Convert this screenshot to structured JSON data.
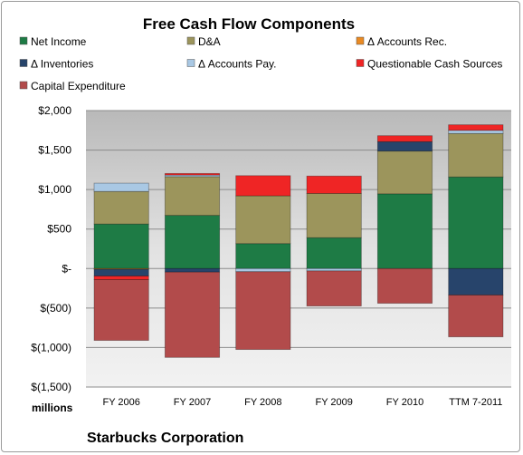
{
  "chart_data": {
    "type": "bar",
    "stacked": true,
    "title": "Free Cash Flow Components",
    "categories": [
      "FY 2006",
      "FY 2007",
      "FY 2008",
      "FY 2009",
      "FY 2010",
      "TTM 7-2011"
    ],
    "series": [
      {
        "name": "Net Income",
        "color": "#1e7b45",
        "values": [
          564,
          673,
          316,
          391,
          946,
          1160
        ]
      },
      {
        "name": "D&A",
        "color": "#9c955c",
        "values": [
          412,
          491,
          605,
          560,
          541,
          550
        ]
      },
      {
        "name": "Δ Accounts Rec.",
        "color": "#e98a23",
        "values": [
          -10,
          0,
          0,
          0,
          0,
          0
        ]
      },
      {
        "name": "Δ Inventories",
        "color": "#27446b",
        "values": [
          -85,
          -45,
          0,
          0,
          120,
          -335
        ]
      },
      {
        "name": "Δ Accounts Pay.",
        "color": "#a9c8e4",
        "values": [
          105,
          20,
          -40,
          -30,
          0,
          40
        ]
      },
      {
        "name": "Questionable Cash Sources",
        "color": "#ef2525",
        "values": [
          -45,
          20,
          255,
          220,
          75,
          70
        ]
      },
      {
        "name": "Capital Expenditure",
        "color": "#b24b4b",
        "values": [
          -770,
          -1080,
          -985,
          -445,
          -440,
          -530
        ]
      }
    ],
    "ylim": [
      -1500,
      2000
    ],
    "yticks": [
      2000,
      1500,
      1000,
      500,
      0,
      -500,
      -1000,
      -1500
    ],
    "ytick_labels": [
      "$2,000",
      "$1,500",
      "$1,000",
      "$500",
      "$-",
      "$(500)",
      "$(1,000)",
      "$(1,500)"
    ],
    "units_label": "millions",
    "legend_position": "top",
    "grid": true,
    "plot_background": "#d8d8d8",
    "footer": "Starbucks Corporation"
  }
}
